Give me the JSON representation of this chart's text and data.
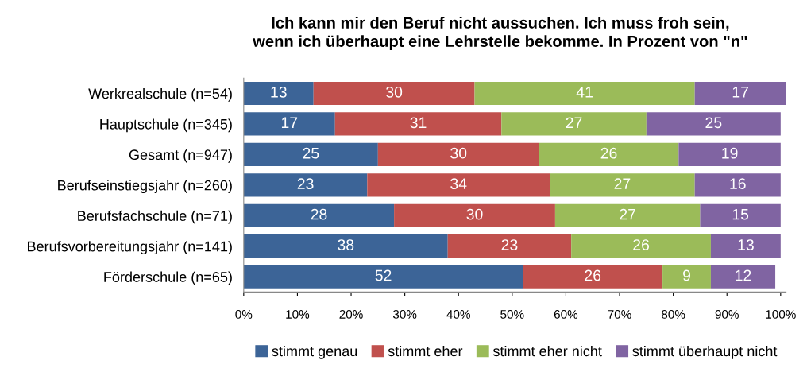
{
  "chart_data": {
    "type": "bar",
    "orientation": "horizontal",
    "stacked": true,
    "data_labels": true,
    "title": "Ich kann mir den Beruf nicht aussuchen. Ich muss froh sein,\nwenn ich überhaupt eine Lehrstelle bekomme. In Prozent von \"n\"",
    "categories": [
      "Werkrealschule (n=54)",
      "Hauptschule (n=345)",
      "Gesamt (n=947)",
      "Berufseinstiegsjahr (n=260)",
      "Berufsfachschule (n=71)",
      "Berufsvorbereitungsjahr (n=141)",
      "Förderschule (n=65)"
    ],
    "series": [
      {
        "name": "stimmt genau",
        "color": "#3c6497",
        "values": [
          13,
          17,
          25,
          23,
          28,
          38,
          52
        ]
      },
      {
        "name": "stimmt eher",
        "color": "#c0504d",
        "values": [
          30,
          31,
          30,
          34,
          30,
          23,
          26
        ]
      },
      {
        "name": "stimmt eher nicht",
        "color": "#9bbb59",
        "values": [
          41,
          27,
          26,
          27,
          27,
          26,
          9
        ]
      },
      {
        "name": "stimmt überhaupt nicht",
        "color": "#8064a2",
        "values": [
          17,
          25,
          19,
          16,
          15,
          13,
          12
        ]
      }
    ],
    "xlim": [
      0,
      101
    ],
    "xticks": [
      {
        "value": 0,
        "label": "0%"
      },
      {
        "value": 10,
        "label": "10%"
      },
      {
        "value": 20,
        "label": "20%"
      },
      {
        "value": 30,
        "label": "30%"
      },
      {
        "value": 40,
        "label": "40%"
      },
      {
        "value": 50,
        "label": "50%"
      },
      {
        "value": 60,
        "label": "60%"
      },
      {
        "value": 70,
        "label": "70%"
      },
      {
        "value": 80,
        "label": "80%"
      },
      {
        "value": 90,
        "label": "90%"
      },
      {
        "value": 100,
        "label": "100%"
      }
    ],
    "grid": false,
    "legend": "bottom"
  }
}
